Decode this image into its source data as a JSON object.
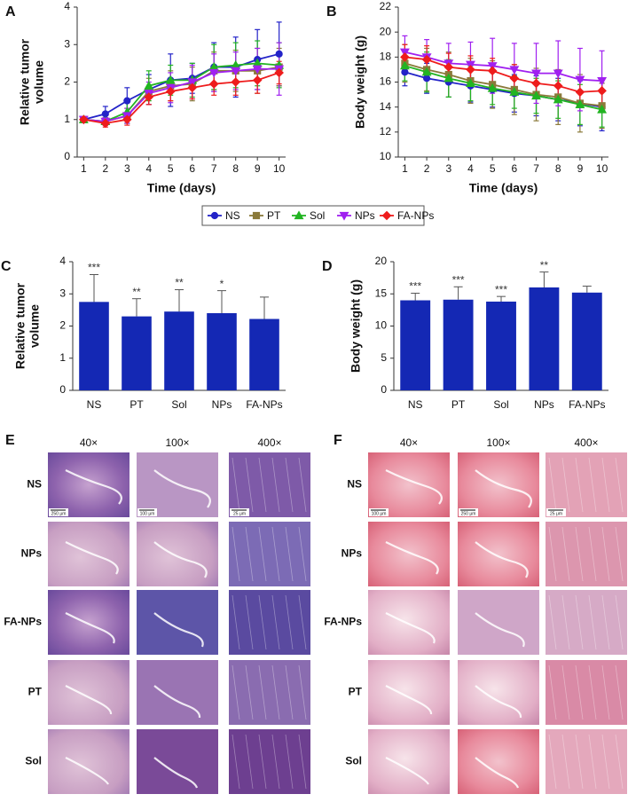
{
  "chart_data": [
    {
      "type": "line",
      "label": "A",
      "ylabel": [
        "Relative tumor",
        "volume"
      ],
      "xlabel": "Time (days)",
      "x": [
        1,
        2,
        3,
        4,
        5,
        6,
        7,
        8,
        9,
        10
      ],
      "xlim": [
        0.7,
        10.3
      ],
      "xticks": [
        1,
        2,
        3,
        4,
        5,
        6,
        7,
        8,
        9,
        10
      ],
      "ylim": [
        0,
        4
      ],
      "yticks": [
        0,
        1,
        2,
        3,
        4
      ],
      "series": [
        {
          "name": "NS",
          "color": "#2323c8",
          "marker": "circle",
          "values": [
            1,
            1.15,
            1.5,
            1.8,
            2.05,
            2.1,
            2.4,
            2.4,
            2.6,
            2.75
          ],
          "errors": [
            0.05,
            0.2,
            0.35,
            0.4,
            0.7,
            0.4,
            0.65,
            0.8,
            0.8,
            0.85
          ]
        },
        {
          "name": "PT",
          "color": "#8b7a3a",
          "marker": "square",
          "values": [
            1,
            0.95,
            1.1,
            1.75,
            1.9,
            1.95,
            2.3,
            2.3,
            2.3,
            2.4
          ],
          "errors": [
            0.05,
            0.1,
            0.2,
            0.35,
            0.4,
            0.45,
            0.5,
            0.55,
            0.6,
            0.5
          ]
        },
        {
          "name": "Sol",
          "color": "#22b422",
          "marker": "triangle",
          "values": [
            1,
            0.95,
            1.2,
            1.9,
            2.05,
            2.05,
            2.4,
            2.45,
            2.5,
            2.45
          ],
          "errors": [
            0.05,
            0.1,
            0.3,
            0.4,
            0.4,
            0.45,
            0.6,
            0.6,
            0.6,
            0.6
          ]
        },
        {
          "name": "NPs",
          "color": "#a020f0",
          "marker": "triangle-down",
          "values": [
            1,
            0.95,
            1.1,
            1.7,
            1.85,
            2.0,
            2.25,
            2.3,
            2.35,
            2.35
          ],
          "errors": [
            0.05,
            0.1,
            0.2,
            0.3,
            0.4,
            0.45,
            0.5,
            0.5,
            0.55,
            0.7
          ]
        },
        {
          "name": "FA-NPs",
          "color": "#ee1c1c",
          "marker": "diamond",
          "values": [
            1,
            0.9,
            1.0,
            1.6,
            1.75,
            1.85,
            1.95,
            2.0,
            2.05,
            2.25
          ],
          "errors": [
            0.05,
            0.1,
            0.15,
            0.2,
            0.25,
            0.3,
            0.3,
            0.35,
            0.35,
            0.3
          ]
        }
      ]
    },
    {
      "type": "line",
      "label": "B",
      "ylabel": [
        "Body weight (g)"
      ],
      "xlabel": "Time (days)",
      "x": [
        1,
        2,
        3,
        4,
        5,
        6,
        7,
        8,
        9,
        10
      ],
      "xlim": [
        0.7,
        10.3
      ],
      "xticks": [
        1,
        2,
        3,
        4,
        5,
        6,
        7,
        8,
        9,
        10
      ],
      "ylim": [
        10,
        22
      ],
      "yticks": [
        10,
        12,
        14,
        16,
        18,
        20,
        22
      ],
      "series": [
        {
          "color": "#2323c8",
          "marker": "circle",
          "values": [
            16.8,
            16.3,
            16.0,
            15.7,
            15.4,
            15.1,
            14.9,
            14.6,
            14.3,
            14.0
          ],
          "errors": [
            1.1,
            1.2,
            1.2,
            1.3,
            1.4,
            1.5,
            1.6,
            1.7,
            1.8,
            1.9
          ]
        },
        {
          "color": "#8b7a3a",
          "marker": "square",
          "values": [
            17.5,
            17.0,
            16.6,
            16.1,
            15.8,
            15.4,
            15.0,
            14.8,
            14.3,
            14.1
          ],
          "errors": [
            1.5,
            1.7,
            1.8,
            1.8,
            1.9,
            2.0,
            2.1,
            2.2,
            2.3,
            1.8
          ]
        },
        {
          "color": "#22b422",
          "marker": "triangle",
          "values": [
            17.3,
            16.8,
            16.3,
            15.9,
            15.5,
            15.2,
            14.9,
            14.6,
            14.2,
            13.8
          ],
          "errors": [
            1.2,
            1.6,
            1.5,
            1.4,
            1.3,
            1.3,
            1.4,
            1.5,
            1.6,
            1.4
          ]
        },
        {
          "color": "#a020f0",
          "marker": "triangle-down",
          "values": [
            18.4,
            18.0,
            17.5,
            17.4,
            17.3,
            17.0,
            16.7,
            16.7,
            16.2,
            16.1
          ],
          "errors": [
            1.3,
            1.4,
            1.6,
            1.8,
            2.2,
            2.1,
            2.4,
            2.6,
            2.5,
            2.4
          ]
        },
        {
          "color": "#ee1c1c",
          "marker": "diamond",
          "values": [
            18.0,
            17.8,
            17.2,
            17.0,
            16.9,
            16.3,
            15.9,
            15.7,
            15.2,
            15.3
          ],
          "errors": [
            1.0,
            1.1,
            1.1,
            1.1,
            1.0,
            1.1,
            1.0,
            1.0,
            1.0,
            1.0
          ]
        }
      ]
    },
    {
      "type": "bar",
      "label": "C",
      "ylabel": [
        "Relative tumor",
        "volume"
      ],
      "categories": [
        "NS",
        "PT",
        "Sol",
        "NPs",
        "FA-NPs"
      ],
      "values": [
        2.75,
        2.3,
        2.45,
        2.4,
        2.22
      ],
      "errors": [
        0.85,
        0.55,
        0.68,
        0.7,
        0.68
      ],
      "significance": [
        "***",
        "**",
        "**",
        "*",
        null
      ],
      "color": "#1428b4",
      "ylim": [
        0,
        4
      ],
      "yticks": [
        0,
        1,
        2,
        3,
        4
      ]
    },
    {
      "type": "bar",
      "label": "D",
      "ylabel": [
        "Body weight (g)"
      ],
      "categories": [
        "NS",
        "PT",
        "Sol",
        "NPs",
        "FA-NPs"
      ],
      "values": [
        14.0,
        14.1,
        13.8,
        16.0,
        15.2
      ],
      "errors": [
        1.1,
        2.0,
        0.8,
        2.4,
        1.0
      ],
      "significance": [
        "***",
        "***",
        "***",
        "**",
        null
      ],
      "color": "#1428b4",
      "ylim": [
        0,
        20
      ],
      "yticks": [
        0,
        5,
        10,
        15,
        20
      ]
    }
  ],
  "histology": [
    {
      "label": "E",
      "columns": [
        "40×",
        "100×",
        "400×"
      ],
      "rows": [
        "NS",
        "NPs",
        "FA-NPs",
        "PT",
        "Sol"
      ],
      "scale_bars": [
        "250 μm",
        "100 μm",
        "25 μm"
      ]
    },
    {
      "label": "F",
      "columns": [
        "40×",
        "100×",
        "400×"
      ],
      "rows": [
        "NS",
        "NPs",
        "FA-NPs",
        "PT",
        "Sol"
      ],
      "scale_bars": [
        "100 μm",
        "250 μm",
        "25 μm"
      ]
    }
  ]
}
